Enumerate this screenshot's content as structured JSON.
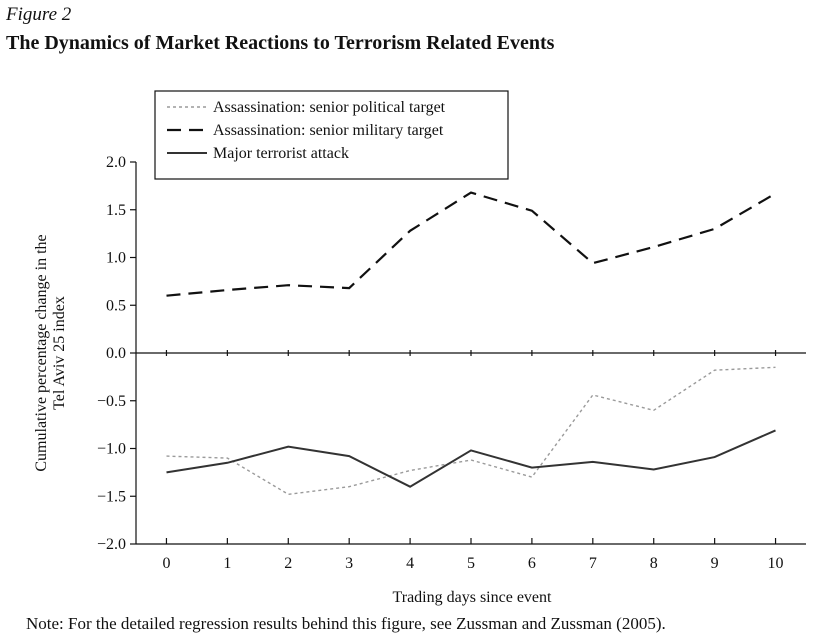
{
  "figure_label": "Figure 2",
  "title": "The Dynamics of Market Reactions to Terrorism Related Events",
  "note": "Note: For the detailed regression results behind this figure, see Zussman and Zussman (2005).",
  "chart_data": {
    "type": "line",
    "xlabel": "Trading days since event",
    "ylabel": "Cumulative percentage change in the Tel Aviv 25 index",
    "ylabel_lines": [
      "Cumulative percentage change in the",
      "Tel Aviv 25 index"
    ],
    "x": [
      0,
      1,
      2,
      3,
      4,
      5,
      6,
      7,
      8,
      9,
      10
    ],
    "xlim": [
      -0.5,
      10.5
    ],
    "ylim": [
      -2.0,
      2.0
    ],
    "yticks": [
      2.0,
      1.5,
      1.0,
      0.5,
      0.0,
      -0.5,
      -1.0,
      -1.5,
      -2.0
    ],
    "ytick_labels": [
      "2.0",
      "1.5",
      "1.0",
      "0.5",
      "0.0",
      "−0.5",
      "−1.0",
      "−1.5",
      "−2.0"
    ],
    "xtick_labels": [
      "0",
      "1",
      "2",
      "3",
      "4",
      "5",
      "6",
      "7",
      "8",
      "9",
      "10"
    ],
    "zero_line": true,
    "legend_position": "top-left",
    "series": [
      {
        "name": "Assassination: senior political target",
        "style": "dotted",
        "color": "#9a9a9a",
        "values": [
          -1.08,
          -1.1,
          -1.48,
          -1.4,
          -1.23,
          -1.12,
          -1.3,
          -0.44,
          -0.6,
          -0.18,
          -0.15
        ]
      },
      {
        "name": "Assassination: senior military target",
        "style": "dashed",
        "color": "#111111",
        "values": [
          0.6,
          0.66,
          0.71,
          0.68,
          1.28,
          1.68,
          1.49,
          0.94,
          1.11,
          1.3,
          1.67
        ]
      },
      {
        "name": "Major terrorist attack",
        "style": "solid",
        "color": "#333333",
        "values": [
          -1.25,
          -1.15,
          -0.98,
          -1.08,
          -1.4,
          -1.02,
          -1.2,
          -1.14,
          -1.22,
          -1.09,
          -0.81
        ]
      }
    ]
  }
}
